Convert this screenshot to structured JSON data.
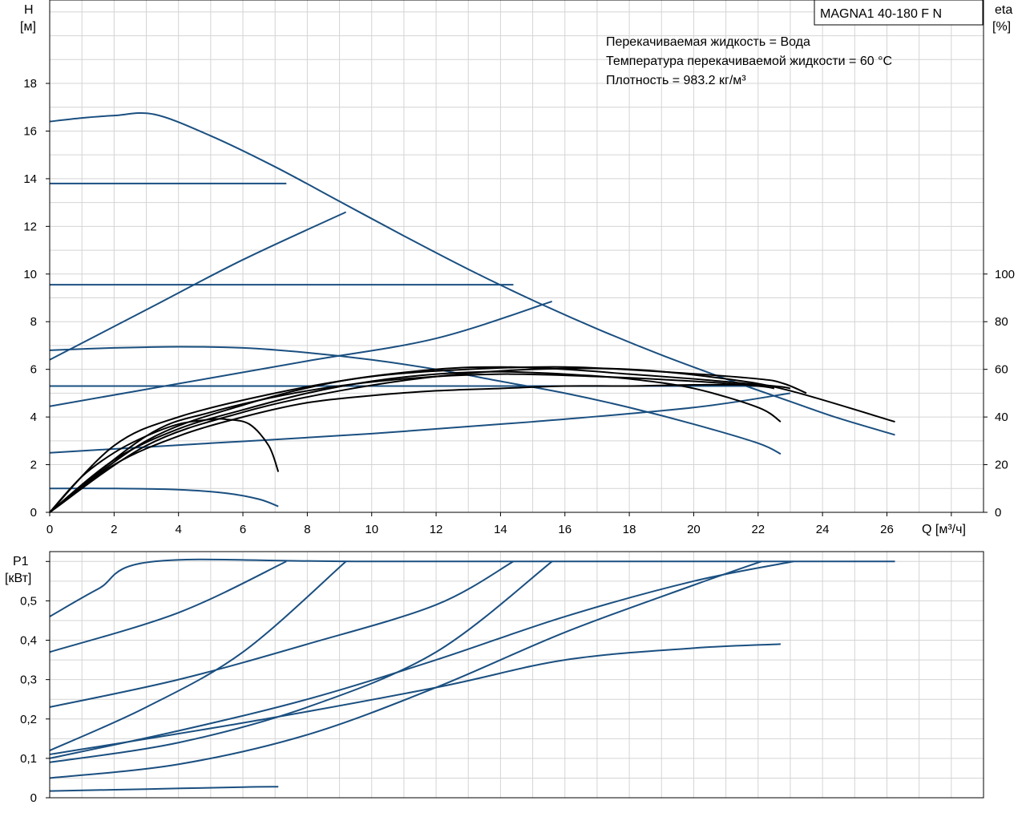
{
  "chart_data": [
    {
      "type": "line",
      "model": "MAGNA1 40-180 F N",
      "info": [
        "Перекачиваемая жидкость = Вода",
        "Температура перекачиваемой жидкости = 60 °C",
        "Плотность = 983.2 кг/м³"
      ],
      "ylabel_left": [
        "H",
        "[м]"
      ],
      "ylabel_right": [
        "eta",
        "[%]"
      ],
      "xlabel": "Q [м³/ч]",
      "xlim": [
        0,
        29
      ],
      "xticks": [
        "0",
        "2",
        "4",
        "6",
        "8",
        "10",
        "12",
        "14",
        "16",
        "18",
        "20",
        "22",
        "24",
        "26"
      ],
      "ylim": [
        0,
        21.5
      ],
      "yticks": [
        "0",
        "2",
        "4",
        "6",
        "8",
        "10",
        "12",
        "14",
        "16",
        "18"
      ],
      "y2ticks": [
        "0",
        "20",
        "40",
        "60",
        "80",
        "100"
      ],
      "grid": true,
      "series": [
        {
          "group": "head",
          "color": "#1a4f80",
          "points": [
            [
              0,
              16.4
            ],
            [
              1,
              16.55
            ],
            [
              2,
              16.65
            ],
            [
              3.25,
              16.7
            ],
            [
              5,
              15.8
            ],
            [
              7,
              14.5
            ],
            [
              9,
              13.05
            ],
            [
              11,
              11.6
            ],
            [
              13,
              10.2
            ],
            [
              15,
              8.9
            ],
            [
              17,
              7.7
            ],
            [
              19,
              6.6
            ],
            [
              21,
              5.6
            ],
            [
              23,
              4.65
            ],
            [
              24.5,
              3.95
            ],
            [
              26.25,
              3.25
            ]
          ]
        },
        {
          "group": "head",
          "color": "#1a4f80",
          "points": [
            [
              0,
              13.8
            ],
            [
              3,
              13.8
            ],
            [
              7.35,
              13.8
            ]
          ]
        },
        {
          "group": "head",
          "color": "#1a4f80",
          "points": [
            [
              0,
              6.4
            ],
            [
              3,
              8.5
            ],
            [
              6,
              10.6
            ],
            [
              9.2,
              12.6
            ]
          ]
        },
        {
          "group": "head",
          "color": "#1a4f80",
          "points": [
            [
              0,
              9.55
            ],
            [
              5,
              9.55
            ],
            [
              10,
              9.55
            ],
            [
              14.4,
              9.55
            ]
          ]
        },
        {
          "group": "head",
          "color": "#1a4f80",
          "points": [
            [
              0,
              4.45
            ],
            [
              4,
              5.4
            ],
            [
              8,
              6.35
            ],
            [
              12,
              7.3
            ],
            [
              15.6,
              8.85
            ]
          ]
        },
        {
          "group": "head",
          "color": "#1a4f80",
          "points": [
            [
              0,
              6.8
            ],
            [
              2,
              6.9
            ],
            [
              4,
              6.95
            ],
            [
              6,
              6.9
            ],
            [
              8,
              6.7
            ],
            [
              10,
              6.4
            ],
            [
              12,
              6.0
            ],
            [
              14,
              5.5
            ],
            [
              16,
              5.0
            ],
            [
              18,
              4.4
            ],
            [
              20,
              3.7
            ],
            [
              22,
              2.9
            ],
            [
              22.7,
              2.45
            ]
          ]
        },
        {
          "group": "head",
          "color": "#1a4f80",
          "points": [
            [
              0,
              5.3
            ],
            [
              6,
              5.3
            ],
            [
              12,
              5.3
            ],
            [
              18,
              5.3
            ],
            [
              22.1,
              5.3
            ]
          ]
        },
        {
          "group": "head",
          "color": "#1a4f80",
          "points": [
            [
              0,
              2.5
            ],
            [
              5,
              2.9
            ],
            [
              10,
              3.3
            ],
            [
              15,
              3.8
            ],
            [
              20,
              4.4
            ],
            [
              23,
              5.0
            ]
          ]
        },
        {
          "group": "head",
          "color": "#1a4f80",
          "points": [
            [
              0,
              1.0
            ],
            [
              2,
              1.0
            ],
            [
              4,
              0.95
            ],
            [
              5.5,
              0.8
            ],
            [
              6.5,
              0.55
            ],
            [
              7.1,
              0.25
            ]
          ]
        },
        {
          "group": "efficiency",
          "color": "#000000",
          "points": [
            [
              0,
              0
            ],
            [
              1,
              15
            ],
            [
              2,
              25
            ],
            [
              3,
              32
            ],
            [
              4,
              37
            ],
            [
              5,
              39
            ],
            [
              5.5,
              39
            ],
            [
              6.2,
              37
            ],
            [
              6.8,
              28
            ],
            [
              7.1,
              17
            ]
          ]
        },
        {
          "group": "efficiency",
          "color": "#000000",
          "points": [
            [
              0,
              0
            ],
            [
              2,
              20
            ],
            [
              4,
              32
            ],
            [
              6,
              40
            ],
            [
              8,
              46
            ],
            [
              10,
              49
            ],
            [
              12,
              51
            ],
            [
              14,
              52
            ],
            [
              16,
              53
            ],
            [
              18,
              53
            ],
            [
              20,
              53.5
            ],
            [
              22.1,
              53.5
            ]
          ]
        },
        {
          "group": "efficiency",
          "color": "#000000",
          "points": [
            [
              0,
              0
            ],
            [
              2,
              22
            ],
            [
              4,
              35
            ],
            [
              6,
              43
            ],
            [
              8,
              50
            ],
            [
              10,
              55
            ],
            [
              12,
              58
            ],
            [
              14,
              59
            ],
            [
              16,
              58
            ],
            [
              18,
              56
            ],
            [
              20,
              52
            ],
            [
              22,
              44
            ],
            [
              22.7,
              38
            ]
          ]
        },
        {
          "group": "efficiency",
          "color": "#000000",
          "points": [
            [
              0,
              0
            ],
            [
              3,
              28
            ],
            [
              6,
              42
            ],
            [
              9,
              51
            ],
            [
              12,
              57
            ],
            [
              15,
              60
            ],
            [
              18,
              60
            ],
            [
              21,
              56
            ],
            [
              23,
              51
            ],
            [
              26.25,
              38
            ]
          ]
        },
        {
          "group": "efficiency",
          "color": "#000000",
          "points": [
            [
              0,
              0
            ],
            [
              3,
              30
            ],
            [
              6,
              45
            ],
            [
              9,
              55
            ],
            [
              12,
              60
            ],
            [
              14,
              61
            ],
            [
              16,
              60
            ],
            [
              18,
              58
            ],
            [
              20,
              56
            ],
            [
              22.5,
              53
            ],
            [
              23,
              52
            ]
          ]
        },
        {
          "group": "efficiency",
          "color": "#000000",
          "points": [
            [
              0,
              0
            ],
            [
              2,
              28
            ],
            [
              4,
              40
            ],
            [
              7,
              50
            ],
            [
              10,
              57
            ],
            [
              13,
              60
            ],
            [
              16,
              61
            ],
            [
              19,
              59
            ],
            [
              22,
              56
            ],
            [
              22.8,
              54
            ],
            [
              23.5,
              50
            ]
          ]
        },
        {
          "group": "efficiency",
          "color": "#000000",
          "points": [
            [
              0,
              0
            ],
            [
              3,
              32
            ],
            [
              5,
              42
            ],
            [
              8,
              51
            ],
            [
              11,
              56
            ],
            [
              14,
              58
            ],
            [
              17,
              57
            ],
            [
              20,
              55
            ],
            [
              22,
              53
            ],
            [
              22.5,
              52
            ]
          ]
        }
      ]
    },
    {
      "type": "line",
      "ylabel": [
        "P1",
        "[кВт]"
      ],
      "xlim": [
        0,
        29
      ],
      "ylim": [
        0,
        0.625
      ],
      "yticks": [
        "0",
        "0,1",
        "0,2",
        "0,3",
        "0,4",
        "0,5"
      ],
      "grid": true,
      "series": [
        {
          "color": "#1a4f80",
          "points": [
            [
              0,
              0.46
            ],
            [
              1.5,
              0.53
            ],
            [
              3.25,
              0.6
            ],
            [
              10,
              0.6
            ],
            [
              26.25,
              0.6
            ]
          ]
        },
        {
          "color": "#1a4f80",
          "points": [
            [
              0,
              0.37
            ],
            [
              4,
              0.47
            ],
            [
              7.35,
              0.6
            ]
          ]
        },
        {
          "color": "#1a4f80",
          "points": [
            [
              0,
              0.23
            ],
            [
              4,
              0.3
            ],
            [
              8,
              0.39
            ],
            [
              12,
              0.49
            ],
            [
              14.4,
              0.6
            ]
          ]
        },
        {
          "color": "#1a4f80",
          "points": [
            [
              0,
              0.12
            ],
            [
              3,
              0.23
            ],
            [
              6,
              0.37
            ],
            [
              9.2,
              0.6
            ]
          ]
        },
        {
          "color": "#1a4f80",
          "points": [
            [
              0,
              0.09
            ],
            [
              4,
              0.14
            ],
            [
              8,
              0.23
            ],
            [
              12,
              0.37
            ],
            [
              15.6,
              0.6
            ]
          ]
        },
        {
          "color": "#1a4f80",
          "points": [
            [
              0,
              0.11
            ],
            [
              6,
              0.19
            ],
            [
              12,
              0.28
            ],
            [
              16,
              0.35
            ],
            [
              20,
              0.38
            ],
            [
              22.7,
              0.39
            ]
          ]
        },
        {
          "color": "#1a4f80",
          "points": [
            [
              0,
              0.1
            ],
            [
              4,
              0.17
            ],
            [
              8,
              0.25
            ],
            [
              12,
              0.35
            ],
            [
              16,
              0.46
            ],
            [
              20,
              0.55
            ],
            [
              23.1,
              0.6
            ]
          ]
        },
        {
          "color": "#1a4f80",
          "points": [
            [
              0,
              0.05
            ],
            [
              4,
              0.085
            ],
            [
              8,
              0.16
            ],
            [
              12,
              0.28
            ],
            [
              16,
              0.42
            ],
            [
              20,
              0.54
            ],
            [
              22.1,
              0.6
            ]
          ]
        },
        {
          "color": "#1a4f80",
          "points": [
            [
              0,
              0.017
            ],
            [
              3,
              0.022
            ],
            [
              6,
              0.027
            ],
            [
              7.1,
              0.028
            ]
          ]
        }
      ]
    }
  ]
}
